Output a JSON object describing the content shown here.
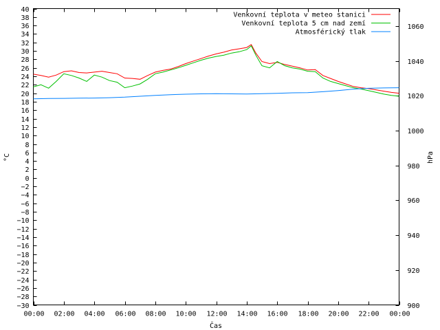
{
  "chart_data": {
    "type": "line",
    "xlabel": "Čas",
    "ylabel": "°C",
    "y2label": "hPa",
    "xlim": [
      0,
      24
    ],
    "ylim": [
      -30,
      40
    ],
    "y2lim": [
      900,
      1070
    ],
    "x_ticks": [
      {
        "v": 0,
        "label": "00:00"
      },
      {
        "v": 2,
        "label": "02:00"
      },
      {
        "v": 4,
        "label": "04:00"
      },
      {
        "v": 6,
        "label": "06:00"
      },
      {
        "v": 8,
        "label": "08:00"
      },
      {
        "v": 10,
        "label": "10:00"
      },
      {
        "v": 12,
        "label": "12:00"
      },
      {
        "v": 14,
        "label": "14:00"
      },
      {
        "v": 16,
        "label": "16:00"
      },
      {
        "v": 18,
        "label": "18:00"
      },
      {
        "v": 20,
        "label": "20:00"
      },
      {
        "v": 22,
        "label": "22:00"
      },
      {
        "v": 24,
        "label": "00:00"
      }
    ],
    "y_ticks": [
      40,
      38,
      36,
      34,
      32,
      30,
      28,
      26,
      24,
      22,
      20,
      18,
      16,
      14,
      12,
      10,
      8,
      6,
      4,
      2,
      0,
      -2,
      -4,
      -6,
      -8,
      -10,
      -12,
      -14,
      -16,
      -18,
      -20,
      -22,
      -24,
      -26,
      -28,
      -30
    ],
    "y2_ticks": [
      1060,
      1040,
      1020,
      1000,
      980,
      960,
      940,
      920,
      900
    ],
    "grid": false,
    "legend_position": "top-right",
    "series": [
      {
        "name": "Venkovní teplota v meteo stanici",
        "axis": "left",
        "color": "#ff0000",
        "x": [
          0,
          0.5,
          1,
          1.5,
          2,
          2.5,
          3,
          3.5,
          4,
          4.5,
          5,
          5.5,
          6,
          6.5,
          7,
          7.5,
          8,
          8.5,
          9,
          9.5,
          10,
          10.5,
          11,
          11.5,
          12,
          12.5,
          13,
          13.5,
          14,
          14.3,
          14.6,
          15,
          15.5,
          16,
          16.5,
          17,
          17.5,
          18,
          18.5,
          19,
          19.5,
          20,
          20.5,
          21,
          21.5,
          22,
          22.5,
          23,
          23.5,
          24
        ],
        "values": [
          24.5,
          24.2,
          23.8,
          24.3,
          25.1,
          25.3,
          24.9,
          24.8,
          25.0,
          25.2,
          24.9,
          24.6,
          23.6,
          23.5,
          23.3,
          24.2,
          25.0,
          25.4,
          25.7,
          26.3,
          27.0,
          27.6,
          28.2,
          28.8,
          29.3,
          29.7,
          30.2,
          30.5,
          30.8,
          31.5,
          29.5,
          27.5,
          27.0,
          27.3,
          26.8,
          26.4,
          26.0,
          25.5,
          25.6,
          24.2,
          23.5,
          22.8,
          22.2,
          21.6,
          21.3,
          21.1,
          20.8,
          20.5,
          20.2,
          20.0
        ]
      },
      {
        "name": "Venkovní teplota 5 cm nad zemí",
        "axis": "left",
        "color": "#00c000",
        "x": [
          0,
          0.5,
          1,
          1.5,
          2,
          2.5,
          3,
          3.5,
          4,
          4.5,
          5,
          5.5,
          6,
          6.5,
          7,
          7.5,
          8,
          8.5,
          9,
          9.5,
          10,
          10.5,
          11,
          11.5,
          12,
          12.5,
          13,
          13.5,
          14,
          14.3,
          14.6,
          15,
          15.5,
          16,
          16.5,
          17,
          17.5,
          18,
          18.5,
          19,
          19.5,
          20,
          20.5,
          21,
          21.5,
          22,
          22.5,
          23,
          23.5,
          24
        ],
        "values": [
          21.5,
          22.0,
          21.2,
          22.8,
          24.6,
          24.2,
          23.6,
          22.8,
          24.3,
          23.8,
          23.0,
          22.6,
          21.3,
          21.7,
          22.2,
          23.3,
          24.6,
          25.0,
          25.5,
          26.0,
          26.6,
          27.2,
          27.8,
          28.3,
          28.7,
          29.0,
          29.5,
          29.8,
          30.3,
          31.2,
          29.0,
          26.5,
          26.0,
          27.5,
          26.5,
          26.0,
          25.7,
          25.2,
          25.1,
          23.6,
          22.8,
          22.3,
          21.8,
          21.3,
          21.0,
          20.6,
          20.2,
          19.8,
          19.5,
          19.3
        ]
      },
      {
        "name": "Atmosférický tlak",
        "axis": "right",
        "color": "#0080ff",
        "x": [
          0,
          1,
          2,
          3,
          4,
          5,
          6,
          7,
          8,
          9,
          10,
          11,
          12,
          13,
          14,
          15,
          16,
          17,
          18,
          19,
          20,
          21,
          22,
          23,
          24
        ],
        "values": [
          1018.2,
          1018.4,
          1018.5,
          1018.6,
          1018.7,
          1018.9,
          1019.2,
          1019.7,
          1020.2,
          1020.6,
          1020.9,
          1021.1,
          1021.2,
          1021.1,
          1021.0,
          1021.2,
          1021.4,
          1021.7,
          1021.8,
          1022.3,
          1023.0,
          1023.8,
          1024.3,
          1024.5,
          1024.6
        ]
      }
    ]
  }
}
